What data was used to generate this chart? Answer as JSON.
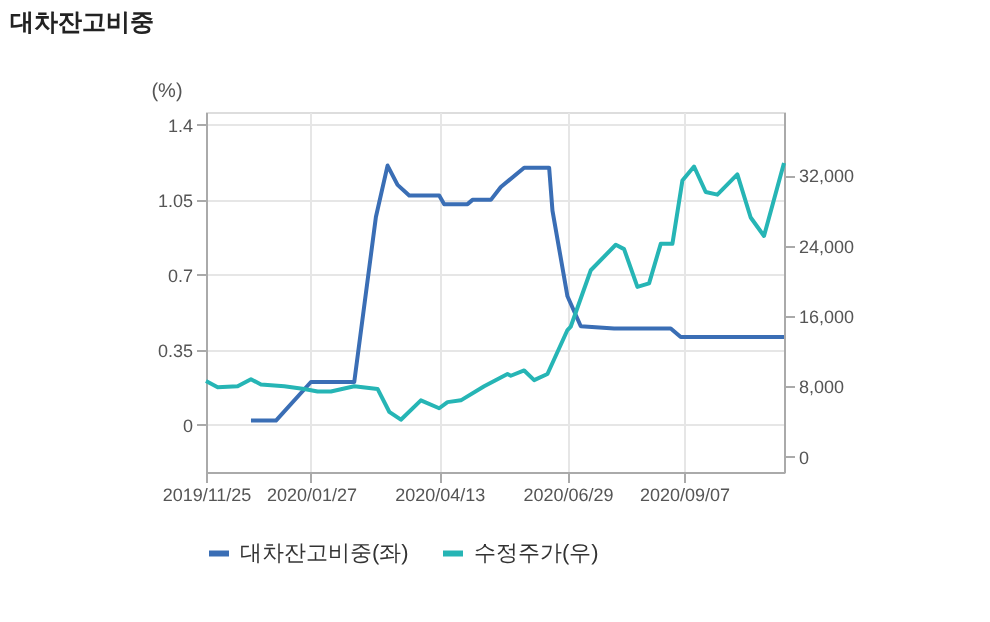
{
  "chart_data": {
    "type": "line",
    "title": "대차잔고비중",
    "ylabel": "(%)",
    "xlim": [
      "2019-11-25",
      "2020-11-06"
    ],
    "xticks": [
      {
        "value": "2019-11-25",
        "label": "2019/11/25"
      },
      {
        "value": "2020-01-27",
        "label": "2020/01/27"
      },
      {
        "value": "2020-04-13",
        "label": "2020/04/13"
      },
      {
        "value": "2020-06-29",
        "label": "2020/06/29"
      },
      {
        "value": "2020-09-07",
        "label": "2020/09/07"
      }
    ],
    "ylim": [
      -0.22,
      1.46
    ],
    "yticks": [
      0,
      0.35,
      0.7,
      1.05,
      1.4
    ],
    "y2lim": [
      -1750,
      39200
    ],
    "y2ticks": [
      0,
      {
        "value": 8000,
        "label": "8,000"
      },
      {
        "value": 16000,
        "label": "16,000"
      },
      {
        "value": 24000,
        "label": "24,000"
      },
      {
        "value": 32000,
        "label": "32,000"
      }
    ],
    "grid": true,
    "legend": "bottom",
    "series": [
      {
        "name": "대차잔고비중(좌)",
        "color": "#3a6eb5",
        "x": [
          "2019-12-22",
          "2020-01-06",
          "2020-01-27",
          "2020-02-22",
          "2020-03-06",
          "2020-03-13",
          "2020-03-19",
          "2020-03-26",
          "2020-04-13",
          "2020-04-16",
          "2020-04-30",
          "2020-05-03",
          "2020-05-14",
          "2020-05-20",
          "2020-06-03",
          "2020-06-18",
          "2020-06-20",
          "2020-06-29",
          "2020-07-07",
          "2020-07-27",
          "2020-08-30",
          "2020-09-05",
          "2020-11-06"
        ],
        "values": [
          0.02,
          0.02,
          0.2,
          0.2,
          0.97,
          1.21,
          1.12,
          1.07,
          1.07,
          1.03,
          1.03,
          1.05,
          1.05,
          1.11,
          1.2,
          1.2,
          1.0,
          0.6,
          0.46,
          0.45,
          0.45,
          0.41,
          0.41
        ]
      },
      {
        "name": "수정주가(우)",
        "color": "#26b5b5",
        "axis": "y2",
        "x": [
          "2019-11-25",
          "2019-12-02",
          "2019-12-14",
          "2019-12-22",
          "2019-12-28",
          "2020-01-11",
          "2020-01-23",
          "2020-01-31",
          "2020-02-08",
          "2020-02-22",
          "2020-03-07",
          "2020-03-14",
          "2020-03-21",
          "2020-04-02",
          "2020-04-13",
          "2020-04-18",
          "2020-04-26",
          "2020-05-10",
          "2020-05-24",
          "2020-05-26",
          "2020-06-03",
          "2020-06-09",
          "2020-06-17",
          "2020-06-29",
          "2020-07-01",
          "2020-07-13",
          "2020-07-28",
          "2020-08-02",
          "2020-08-10",
          "2020-08-17",
          "2020-08-24",
          "2020-08-31",
          "2020-09-06",
          "2020-09-13",
          "2020-09-20",
          "2020-09-27",
          "2020-10-09",
          "2020-10-17",
          "2020-10-25",
          "2020-11-06"
        ],
        "values": [
          8600,
          7900,
          8000,
          8800,
          8200,
          8000,
          7700,
          7400,
          7400,
          8000,
          7700,
          5100,
          4200,
          6400,
          5500,
          6200,
          6400,
          8000,
          9400,
          9200,
          9800,
          8700,
          9400,
          14400,
          14800,
          21200,
          24100,
          23600,
          19300,
          19700,
          24200,
          24200,
          31400,
          33000,
          30100,
          29800,
          32100,
          27200,
          25100,
          33400
        ]
      }
    ]
  }
}
